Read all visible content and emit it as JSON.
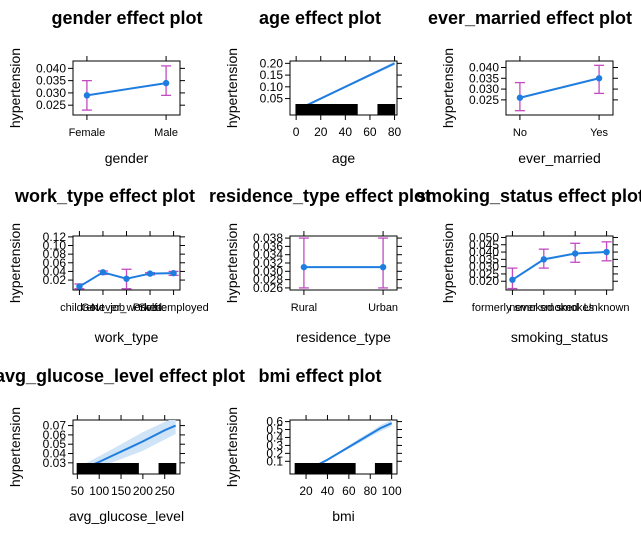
{
  "chart_data": [
    {
      "type": "line",
      "title": "gender effect plot",
      "xlabel": "gender",
      "ylabel": "hypertension",
      "x_kind": "categorical",
      "categories": [
        "Female",
        "Male"
      ],
      "values": [
        0.029,
        0.034
      ],
      "ci_lower": [
        0.023,
        0.029
      ],
      "ci_upper": [
        0.035,
        0.041
      ],
      "yticks": [
        "0.025",
        "0.030",
        "0.035",
        "0.040"
      ],
      "ylim": [
        0.021,
        0.043
      ]
    },
    {
      "type": "line",
      "title": "age effect plot",
      "xlabel": "age",
      "ylabel": "hypertension",
      "x_kind": "numeric",
      "x": [
        0,
        10,
        20,
        30,
        40,
        50,
        60,
        70,
        80
      ],
      "values": [
        0.0,
        0.025,
        0.05,
        0.075,
        0.1,
        0.125,
        0.15,
        0.175,
        0.2
      ],
      "ci_lower": [
        0.0,
        0.023,
        0.047,
        0.072,
        0.096,
        0.12,
        0.144,
        0.168,
        0.192
      ],
      "ci_upper": [
        0.0,
        0.027,
        0.053,
        0.078,
        0.104,
        0.13,
        0.156,
        0.182,
        0.208
      ],
      "xticks": [
        "0",
        "20",
        "40",
        "60",
        "80"
      ],
      "xlim": [
        -5,
        82
      ],
      "yticks": [
        "0.05",
        "0.10",
        "0.15",
        "0.20"
      ],
      "ylim": [
        -0.02,
        0.21
      ],
      "rug": true
    },
    {
      "type": "line",
      "title": "ever_married effect plot",
      "xlabel": "ever_married",
      "ylabel": "hypertension",
      "x_kind": "categorical",
      "categories": [
        "No",
        "Yes"
      ],
      "values": [
        0.026,
        0.035
      ],
      "ci_lower": [
        0.02,
        0.028
      ],
      "ci_upper": [
        0.033,
        0.041
      ],
      "yticks": [
        "0.025",
        "0.030",
        "0.035",
        "0.040"
      ],
      "ylim": [
        0.018,
        0.043
      ]
    },
    {
      "type": "line",
      "title": "work_type effect plot",
      "xlabel": "work_type",
      "ylabel": "hypertension",
      "x_kind": "categorical",
      "categories": [
        "children",
        "Govt_job",
        "Never_worked",
        "Private",
        "Self-employed"
      ],
      "values": [
        0.005,
        0.038,
        0.023,
        0.035,
        0.036
      ],
      "ci_lower": [
        0.0,
        0.033,
        0.0,
        0.032,
        0.031
      ],
      "ci_upper": [
        0.011,
        0.041,
        0.045,
        0.037,
        0.04
      ],
      "yticks": [
        "0.02",
        "0.04",
        "0.06",
        "0.08",
        "0.10",
        "0.12"
      ],
      "ylim": [
        -0.003,
        0.122
      ]
    },
    {
      "type": "line",
      "title": "residence_type effect plot",
      "xlabel": "residence_type",
      "ylabel": "hypertension",
      "x_kind": "categorical",
      "categories": [
        "Rural",
        "Urban"
      ],
      "values": [
        0.031,
        0.031
      ],
      "ci_lower": [
        0.026,
        0.026
      ],
      "ci_upper": [
        0.038,
        0.038
      ],
      "yticks": [
        "0.026",
        "0.028",
        "0.030",
        "0.032",
        "0.034",
        "0.036",
        "0.038"
      ],
      "ylim": [
        0.0255,
        0.0385
      ]
    },
    {
      "type": "line",
      "title": "smoking_status effect plot",
      "xlabel": "smoking_status",
      "ylabel": "hypertension",
      "x_kind": "categorical",
      "categories": [
        "formerly smoked",
        "never smoked",
        "smokes",
        "Unknown"
      ],
      "values": [
        0.021,
        0.035,
        0.039,
        0.04
      ],
      "ci_lower": [
        0.015,
        0.029,
        0.033,
        0.034
      ],
      "ci_upper": [
        0.029,
        0.042,
        0.046,
        0.047
      ],
      "yticks": [
        "0.020",
        "0.025",
        "0.030",
        "0.035",
        "0.040",
        "0.045",
        "0.050"
      ],
      "ylim": [
        0.014,
        0.051
      ]
    },
    {
      "type": "line",
      "title": "avg_glucose_level effect plot",
      "xlabel": "avg_glucose_level",
      "ylabel": "hypertension",
      "x_kind": "numeric",
      "x": [
        50,
        100,
        150,
        200,
        250,
        275
      ],
      "values": [
        0.021,
        0.031,
        0.042,
        0.053,
        0.065,
        0.07
      ],
      "ci_lower": [
        0.017,
        0.025,
        0.034,
        0.043,
        0.055,
        0.061
      ],
      "ci_upper": [
        0.025,
        0.037,
        0.05,
        0.063,
        0.074,
        0.079
      ],
      "xticks": [
        "50",
        "100",
        "150",
        "200",
        "250"
      ],
      "xlim": [
        40,
        285
      ],
      "yticks": [
        "0.03",
        "0.04",
        "0.05",
        "0.06",
        "0.07"
      ],
      "ylim": [
        0.018,
        0.076
      ],
      "rug": true
    },
    {
      "type": "line",
      "title": "bmi effect plot",
      "xlabel": "bmi",
      "ylabel": "hypertension",
      "x_kind": "numeric",
      "x": [
        10,
        20,
        30,
        40,
        50,
        60,
        70,
        80,
        90,
        100
      ],
      "values": [
        -0.05,
        0.0,
        0.05,
        0.12,
        0.2,
        0.28,
        0.36,
        0.44,
        0.52,
        0.58
      ],
      "ci_lower": [
        -0.05,
        0.0,
        0.045,
        0.11,
        0.19,
        0.26,
        0.33,
        0.41,
        0.48,
        0.54
      ],
      "ci_upper": [
        -0.05,
        0.0,
        0.055,
        0.13,
        0.21,
        0.3,
        0.39,
        0.47,
        0.56,
        0.62
      ],
      "xticks": [
        "20",
        "40",
        "60",
        "80",
        "100"
      ],
      "xlim": [
        5,
        105
      ],
      "yticks": [
        "0.1",
        "0.2",
        "0.3",
        "0.4",
        "0.5",
        "0.6"
      ],
      "ylim": [
        -0.06,
        0.62
      ],
      "rug": true
    }
  ],
  "colors": {
    "line": "#1f7de0",
    "ci_band": "#cfe4f7",
    "error_bar": "#c24bc2",
    "axis": "#000000",
    "rug": "#000000"
  }
}
